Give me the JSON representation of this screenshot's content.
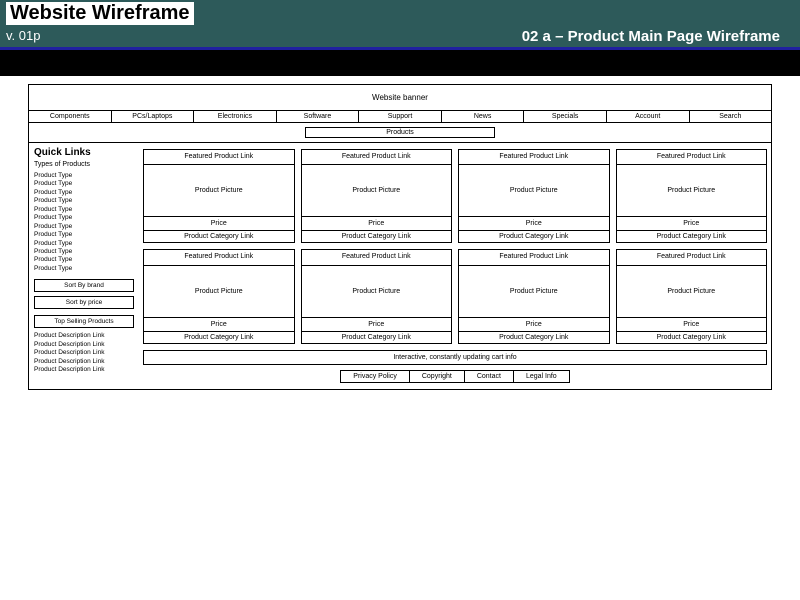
{
  "header": {
    "title": "Website Wireframe",
    "version": "v. 01p",
    "right": "02 a – Product Main Page Wireframe"
  },
  "colors": {
    "header_bg": "#2d5a5a",
    "header_border": "#2020a0",
    "strip": "#000000"
  },
  "wireframe": {
    "banner": "Website banner",
    "nav": [
      "Components",
      "PCs/Laptops",
      "Electronics",
      "Software",
      "Support",
      "News",
      "Specials",
      "Account",
      "Search"
    ],
    "products_bar": "Products",
    "sidebar": {
      "title": "Quick Links",
      "subtitle": "Types of Products",
      "product_types": [
        "Product Type",
        "Product Type",
        "Product Type",
        "Product Type",
        "Product Type",
        "Product Type",
        "Product Type",
        "Product Type",
        "Product Type",
        "Product Type",
        "Product Type",
        "Product Type"
      ],
      "sort_brand": "Sort By brand",
      "sort_price": "Sort by price",
      "top_selling": "Top Selling Products",
      "desc_links": [
        "Product Description Link",
        "Product Description Link",
        "Product Description Link",
        "Product Description Link",
        "Product Description Link"
      ]
    },
    "card": {
      "featured": "Featured Product Link",
      "picture": "Product Picture",
      "price": "Price",
      "category": "Product Category Link"
    },
    "cart_bar": "Interactive, constantly updating cart info",
    "footer": [
      "Privacy Policy",
      "Copyright",
      "Contact",
      "Legal Info"
    ]
  }
}
